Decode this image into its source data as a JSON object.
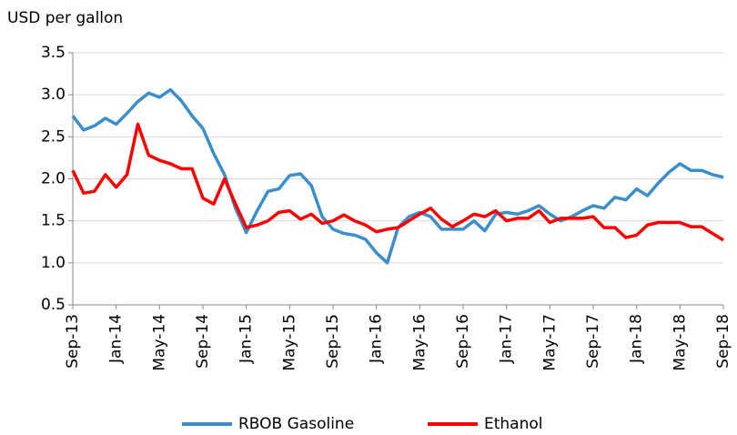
{
  "chart_data": {
    "type": "line",
    "y_label": "USD per gallon",
    "categories": [
      "Sep-13",
      null,
      null,
      null,
      "Jan-14",
      null,
      null,
      null,
      "May-14",
      null,
      null,
      null,
      "Sep-14",
      null,
      null,
      null,
      "Jan-15",
      null,
      null,
      null,
      "May-15",
      null,
      null,
      null,
      "Sep-15",
      null,
      null,
      null,
      "Jan-16",
      null,
      null,
      null,
      "May-16",
      null,
      null,
      null,
      "Sep-16",
      null,
      null,
      null,
      "Jan-17",
      null,
      null,
      null,
      "May-17",
      null,
      null,
      null,
      "Sep-17",
      null,
      null,
      null,
      "Jan-18",
      null,
      null,
      null,
      "May-18",
      null,
      null,
      null,
      "Sep-18"
    ],
    "series": [
      {
        "name": "RBOB Gasoline",
        "color": "#3a8fcb",
        "values": [
          2.75,
          2.58,
          2.63,
          2.72,
          2.65,
          2.78,
          2.92,
          3.02,
          2.97,
          3.06,
          2.93,
          2.75,
          2.6,
          2.3,
          2.05,
          1.65,
          1.36,
          1.62,
          1.85,
          1.88,
          2.04,
          2.06,
          1.92,
          1.55,
          1.4,
          1.35,
          1.33,
          1.28,
          1.12,
          1.0,
          1.42,
          1.55,
          1.6,
          1.55,
          1.4,
          1.4,
          1.4,
          1.5,
          1.38,
          1.58,
          1.6,
          1.58,
          1.62,
          1.68,
          1.58,
          1.5,
          1.55,
          1.62,
          1.68,
          1.65,
          1.78,
          1.75,
          1.88,
          1.8,
          1.95,
          2.08,
          2.18,
          2.1,
          2.1,
          2.05,
          2.02
        ]
      },
      {
        "name": "Ethanol",
        "color": "#ff0000",
        "values": [
          2.1,
          1.83,
          1.85,
          2.05,
          1.9,
          2.05,
          2.65,
          2.28,
          2.22,
          2.18,
          2.12,
          2.12,
          1.77,
          1.7,
          2.0,
          1.7,
          1.42,
          1.45,
          1.5,
          1.6,
          1.62,
          1.52,
          1.58,
          1.47,
          1.5,
          1.57,
          1.5,
          1.45,
          1.37,
          1.4,
          1.42,
          1.5,
          1.58,
          1.65,
          1.52,
          1.43,
          1.5,
          1.58,
          1.55,
          1.62,
          1.5,
          1.53,
          1.53,
          1.62,
          1.48,
          1.53,
          1.53,
          1.53,
          1.55,
          1.42,
          1.42,
          1.3,
          1.33,
          1.45,
          1.48,
          1.48,
          1.48,
          1.43,
          1.43,
          1.35,
          1.27
        ]
      }
    ],
    "ylim": [
      0.5,
      3.5
    ],
    "yticks": [
      0.5,
      {
        "value": 1,
        "label": "1.0"
      },
      1.5,
      {
        "value": 2,
        "label": "2.0"
      },
      2.5,
      {
        "value": 3,
        "label": "3.0"
      },
      3.5
    ],
    "grid": true
  }
}
